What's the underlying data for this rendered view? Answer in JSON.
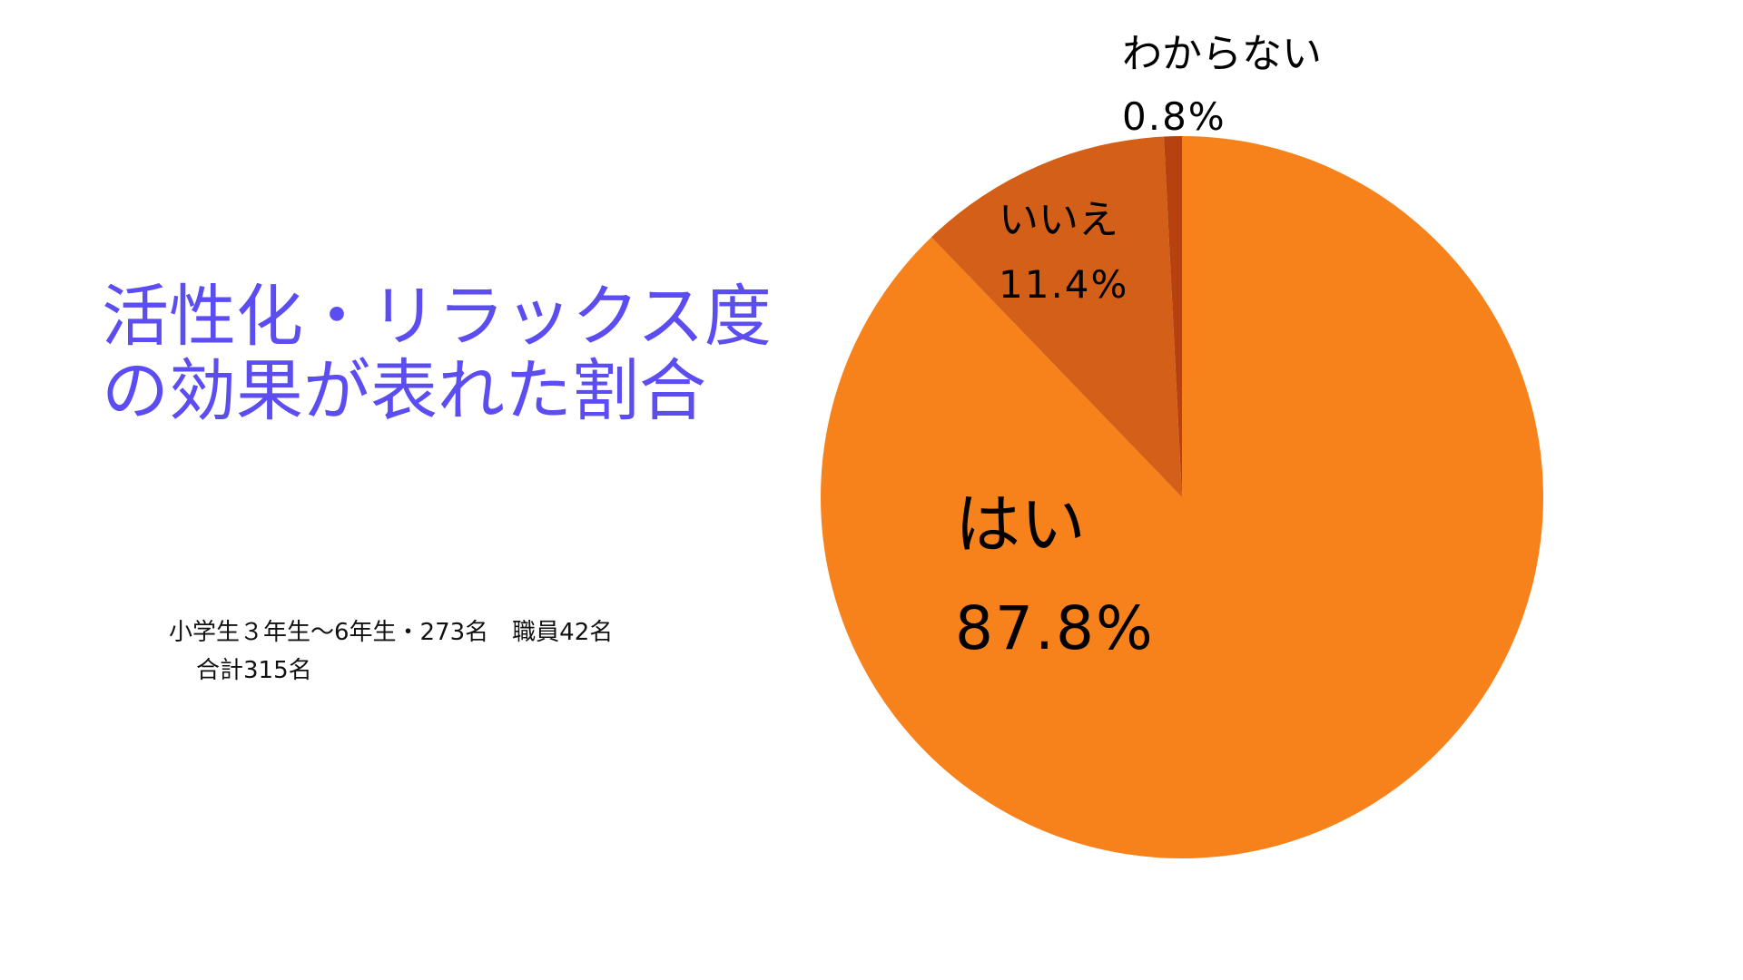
{
  "slide": {
    "title_lines": [
      "活性化・リラックス度",
      "の効果が表れた割合"
    ],
    "note_lines": [
      "小学生３年生～6年生・273名　職員42名",
      "合計315名"
    ]
  },
  "chart_data": {
    "type": "pie",
    "start": "top",
    "direction": "clockwise",
    "categories": [
      "はい",
      "いいえ",
      "わからない"
    ],
    "values": [
      87.8,
      11.4,
      0.8
    ],
    "value_labels": [
      "87.8%",
      "11.4%",
      "0.8%"
    ],
    "colors": [
      "#f7821b",
      "#d45f18",
      "#b8420f"
    ],
    "legend": "none"
  }
}
